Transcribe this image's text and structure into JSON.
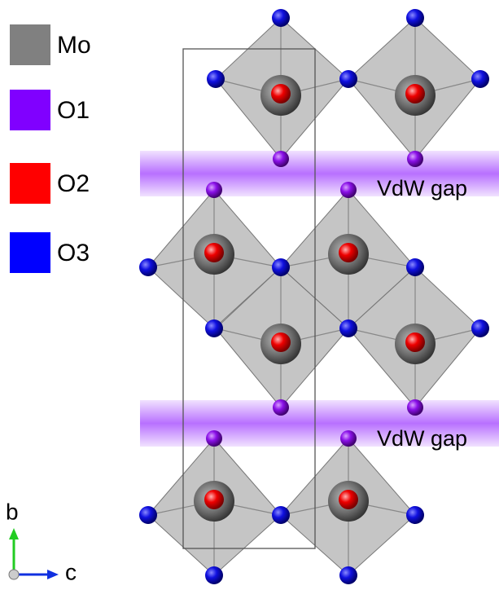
{
  "legend": [
    {
      "label": "Mo",
      "color": "#808080"
    },
    {
      "label": "O1",
      "color": "#8000ff"
    },
    {
      "label": "O2",
      "color": "#ff0000"
    },
    {
      "label": "O3",
      "color": "#0000ff"
    }
  ],
  "annotations": [
    "VdW gap",
    "VdW gap"
  ],
  "axes": {
    "vertical": "b",
    "horizontal": "c"
  }
}
